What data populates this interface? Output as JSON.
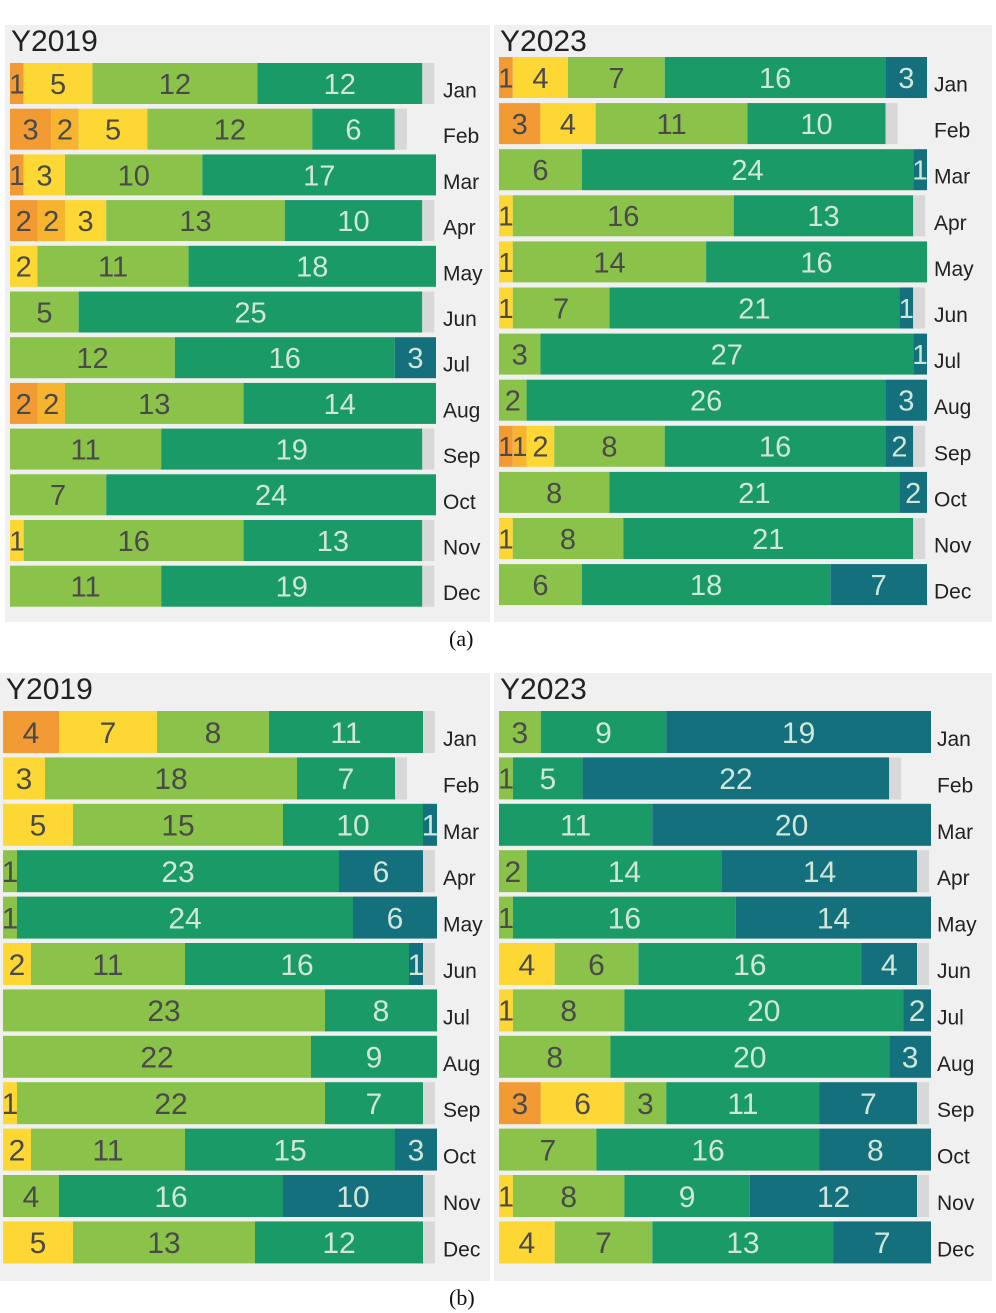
{
  "colors": {
    "c1": "#f29b35",
    "c2": "#fdd835",
    "c3": "#8bc34a",
    "c4": "#1a9a66",
    "c5": "#15707e",
    "gray": "#d8d8d8",
    "text_light": "#cfe6d9",
    "text_dark": "#4a4a4a"
  },
  "captions": [
    "(a)",
    "(b)"
  ],
  "chart_data": [
    {
      "type": "bar",
      "orientation": "horizontal-stacked",
      "title": "Y2019",
      "caption": "(a)",
      "categories": [
        "Jan",
        "Feb",
        "Mar",
        "Apr",
        "May",
        "Jun",
        "Jul",
        "Aug",
        "Sep",
        "Oct",
        "Nov",
        "Dec"
      ],
      "series": [
        {
          "color": "#f29b35",
          "values": [
            1,
            3,
            1,
            2,
            0,
            0,
            0,
            2,
            0,
            0,
            0,
            0
          ]
        },
        {
          "color": "#f6b42f",
          "values": [
            0,
            2,
            0,
            2,
            0,
            0,
            0,
            2,
            0,
            0,
            0,
            0
          ]
        },
        {
          "color": "#fdd835",
          "values": [
            5,
            5,
            3,
            3,
            2,
            0,
            0,
            0,
            0,
            0,
            1,
            0
          ]
        },
        {
          "color": "#8bc34a",
          "values": [
            12,
            12,
            10,
            13,
            11,
            5,
            12,
            13,
            11,
            7,
            16,
            11
          ]
        },
        {
          "color": "#1a9a66",
          "values": [
            12,
            6,
            17,
            10,
            18,
            25,
            16,
            14,
            19,
            24,
            13,
            19
          ]
        },
        {
          "color": "#15707e",
          "values": [
            0,
            0,
            0,
            0,
            0,
            0,
            3,
            0,
            0,
            0,
            0,
            0
          ]
        }
      ]
    },
    {
      "type": "bar",
      "orientation": "horizontal-stacked",
      "title": "Y2023",
      "caption": "(a)",
      "categories": [
        "Jan",
        "Feb",
        "Mar",
        "Apr",
        "May",
        "Jun",
        "Jul",
        "Aug",
        "Sep",
        "Oct",
        "Nov",
        "Dec"
      ],
      "series": [
        {
          "color": "#f29b35",
          "values": [
            1,
            3,
            0,
            0,
            0,
            0,
            0,
            0,
            1,
            0,
            0,
            0
          ]
        },
        {
          "color": "#f6b42f",
          "values": [
            0,
            0,
            0,
            0,
            0,
            0,
            0,
            0,
            1,
            0,
            0,
            0
          ]
        },
        {
          "color": "#fdd835",
          "values": [
            4,
            4,
            0,
            1,
            1,
            1,
            0,
            0,
            2,
            0,
            1,
            0
          ]
        },
        {
          "color": "#8bc34a",
          "values": [
            7,
            11,
            6,
            16,
            14,
            7,
            3,
            2,
            8,
            8,
            8,
            6
          ]
        },
        {
          "color": "#1a9a66",
          "values": [
            16,
            10,
            24,
            13,
            16,
            21,
            27,
            26,
            16,
            21,
            21,
            18
          ]
        },
        {
          "color": "#15707e",
          "values": [
            3,
            0,
            1,
            0,
            0,
            1,
            1,
            3,
            2,
            2,
            0,
            7
          ]
        }
      ]
    },
    {
      "type": "bar",
      "orientation": "horizontal-stacked",
      "title": "Y2019",
      "caption": "(b)",
      "categories": [
        "Jan",
        "Feb",
        "Mar",
        "Apr",
        "May",
        "Jun",
        "Jul",
        "Aug",
        "Sep",
        "Oct",
        "Nov",
        "Dec"
      ],
      "series": [
        {
          "color": "#f29b35",
          "values": [
            4,
            0,
            0,
            0,
            0,
            0,
            0,
            0,
            0,
            0,
            0,
            0
          ]
        },
        {
          "color": "#fdd835",
          "values": [
            7,
            3,
            5,
            0,
            0,
            2,
            0,
            0,
            1,
            2,
            0,
            5
          ]
        },
        {
          "color": "#8bc34a",
          "values": [
            8,
            18,
            15,
            1,
            1,
            11,
            23,
            22,
            22,
            11,
            4,
            13
          ]
        },
        {
          "color": "#1a9a66",
          "values": [
            11,
            7,
            10,
            23,
            24,
            16,
            8,
            9,
            7,
            15,
            16,
            12
          ]
        },
        {
          "color": "#15707e",
          "values": [
            0,
            0,
            1,
            6,
            6,
            1,
            0,
            0,
            0,
            3,
            10,
            0
          ]
        }
      ]
    },
    {
      "type": "bar",
      "orientation": "horizontal-stacked",
      "title": "Y2023",
      "caption": "(b)",
      "categories": [
        "Jan",
        "Feb",
        "Mar",
        "Apr",
        "May",
        "Jun",
        "Jul",
        "Aug",
        "Sep",
        "Oct",
        "Nov",
        "Dec"
      ],
      "series": [
        {
          "color": "#f29b35",
          "values": [
            0,
            0,
            0,
            0,
            0,
            0,
            0,
            0,
            3,
            0,
            0,
            0
          ]
        },
        {
          "color": "#fdd835",
          "values": [
            0,
            0,
            0,
            0,
            0,
            4,
            1,
            0,
            6,
            0,
            1,
            4
          ]
        },
        {
          "color": "#8bc34a",
          "values": [
            3,
            1,
            0,
            2,
            1,
            6,
            8,
            8,
            3,
            7,
            8,
            7
          ]
        },
        {
          "color": "#1a9a66",
          "values": [
            9,
            5,
            11,
            14,
            16,
            16,
            20,
            20,
            11,
            16,
            9,
            13
          ]
        },
        {
          "color": "#15707e",
          "values": [
            19,
            22,
            20,
            14,
            14,
            4,
            2,
            3,
            7,
            8,
            12,
            7
          ]
        }
      ]
    }
  ]
}
